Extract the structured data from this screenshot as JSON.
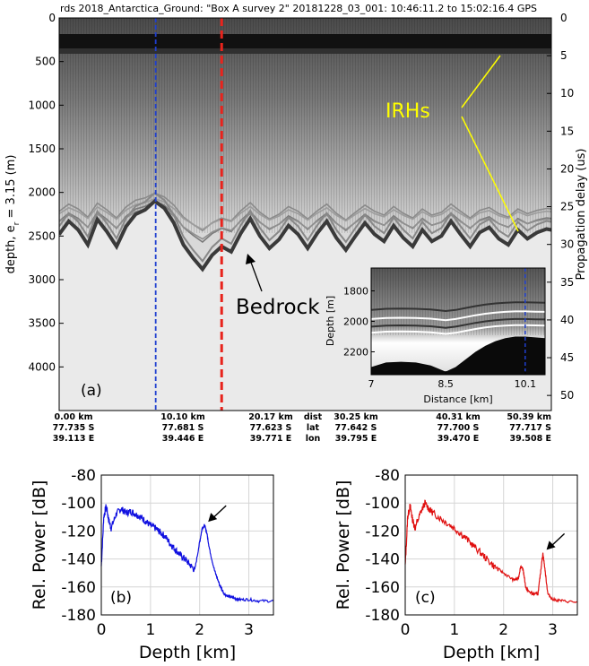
{
  "figure_title": "rds 2018_Antarctica_Ground: \"Box A survey 2\"  20181228_03_001: 10:46:11.2 to 15:02:16.4 GPS",
  "colors": {
    "blue_marker": "#1f3fd0",
    "red_marker": "#e8231c",
    "irh_annotation": "#ffff00",
    "blue_series": "#1010e0",
    "red_series": "#e01010"
  },
  "chart_data": [
    {
      "type": "heatmap",
      "panel_label": "(a)",
      "ylabel": "depth, e",
      "ylabel_sub": "r",
      "ylabel_suffix": " = 3.15 (m)",
      "y2label": "Propagation delay (us)",
      "ylim": [
        0,
        4500
      ],
      "y2lim": [
        0,
        52
      ],
      "yticks": [
        "0",
        "500",
        "1000",
        "1500",
        "2000",
        "2500",
        "3000",
        "3500",
        "4000"
      ],
      "y2ticks": [
        "0",
        "5",
        "10",
        "15",
        "20",
        "25",
        "30",
        "35",
        "40",
        "45",
        "50"
      ],
      "xlim": [
        0,
        51.5
      ],
      "bedrock_profile_km": [
        0,
        1,
        2,
        3,
        4,
        5,
        6,
        7,
        8,
        9,
        10,
        11,
        12,
        13,
        14,
        15,
        16,
        17,
        18,
        19,
        20,
        21,
        22,
        23,
        24,
        25,
        26,
        27,
        28,
        29,
        30,
        31,
        32,
        33,
        34,
        35,
        36,
        37,
        38,
        39,
        40,
        41,
        42,
        43,
        44,
        45,
        46,
        47,
        48,
        49,
        50,
        51,
        51.5
      ],
      "bedrock_profile_depth_m": [
        2480,
        2330,
        2430,
        2600,
        2310,
        2450,
        2620,
        2390,
        2250,
        2200,
        2100,
        2180,
        2350,
        2600,
        2750,
        2880,
        2720,
        2620,
        2680,
        2470,
        2300,
        2500,
        2640,
        2540,
        2380,
        2480,
        2640,
        2470,
        2330,
        2520,
        2660,
        2500,
        2350,
        2480,
        2560,
        2380,
        2520,
        2620,
        2430,
        2560,
        2500,
        2330,
        2480,
        2620,
        2460,
        2400,
        2530,
        2600,
        2430,
        2530,
        2460,
        2420,
        2430
      ],
      "blue_marker_km": 10.1,
      "red_marker_km": 17.0,
      "annotations": [
        {
          "text": "IRHs",
          "target": "internal-layers"
        },
        {
          "text": "Bedrock",
          "target": "bed-reflection"
        }
      ],
      "distance_columns": [
        {
          "dist": "0.00 km",
          "lat": "77.735 S",
          "lon": "39.113 E"
        },
        {
          "dist": "10.10 km",
          "lat": "77.681 S",
          "lon": "39.446 E"
        },
        {
          "dist": "20.17 km",
          "lat": "77.623 S",
          "lon": "39.771 E"
        },
        {
          "dist": "30.25 km",
          "lat": "77.642 S",
          "lon": "39.795 E"
        },
        {
          "dist": "40.31 km",
          "lat": "77.700 S",
          "lon": "39.470 E"
        },
        {
          "dist": "50.39 km",
          "lat": "77.717 S",
          "lon": "39.508 E"
        }
      ],
      "row_labels": [
        "dist",
        "lat",
        "lon"
      ]
    },
    {
      "type": "heatmap",
      "inset": true,
      "ylabel": "Depth [m]",
      "xlabel": "Distance [km]",
      "xlim": [
        7,
        10.5
      ],
      "ylim": [
        1650,
        2350
      ],
      "xticks": [
        "7",
        "8.5",
        "10.1"
      ],
      "yticks": [
        "1800",
        "2000",
        "2200"
      ],
      "bed_km": [
        7.0,
        7.3,
        7.6,
        7.9,
        8.2,
        8.5,
        8.7,
        8.9,
        9.1,
        9.3,
        9.5,
        9.7,
        9.9,
        10.1,
        10.3,
        10.5
      ],
      "bed_depth_m": [
        2300,
        2270,
        2265,
        2270,
        2290,
        2330,
        2300,
        2250,
        2200,
        2160,
        2130,
        2110,
        2100,
        2100,
        2105,
        2110
      ]
    },
    {
      "type": "line",
      "panel_label": "(b)",
      "xlabel": "Depth [km]",
      "ylabel": "Rel. Power [dB]",
      "xlim": [
        0,
        3.5
      ],
      "ylim": [
        -180,
        -80
      ],
      "xticks": [
        "0",
        "1",
        "2",
        "3"
      ],
      "yticks": [
        "-80",
        "-100",
        "-120",
        "-140",
        "-160",
        "-180"
      ],
      "series": [
        {
          "color": "#1010e0",
          "x": [
            0.0,
            0.05,
            0.1,
            0.15,
            0.2,
            0.3,
            0.4,
            0.5,
            0.6,
            0.7,
            0.8,
            0.9,
            1.0,
            1.1,
            1.2,
            1.3,
            1.4,
            1.5,
            1.6,
            1.7,
            1.8,
            1.9,
            2.0,
            2.05,
            2.1,
            2.15,
            2.2,
            2.3,
            2.4,
            2.5,
            2.6,
            2.7,
            2.8,
            3.0,
            3.2,
            3.5
          ],
          "y": [
            -145,
            -110,
            -102,
            -112,
            -118,
            -108,
            -104,
            -107,
            -106,
            -108,
            -110,
            -113,
            -116,
            -118,
            -121,
            -124,
            -129,
            -133,
            -137,
            -140,
            -144,
            -148,
            -128,
            -118,
            -116,
            -122,
            -133,
            -148,
            -158,
            -165,
            -167,
            -168,
            -169,
            -169,
            -170,
            -170
          ]
        }
      ],
      "arrow_at": {
        "x": 2.1,
        "y": -116
      }
    },
    {
      "type": "line",
      "panel_label": "(c)",
      "xlabel": "Depth [km]",
      "ylabel": "Rel. Power [dB]",
      "xlim": [
        0,
        3.5
      ],
      "ylim": [
        -180,
        -80
      ],
      "xticks": [
        "0",
        "1",
        "2",
        "3"
      ],
      "yticks": [
        "-80",
        "-100",
        "-120",
        "-140",
        "-160",
        "-180"
      ],
      "series": [
        {
          "color": "#e01010",
          "x": [
            0.0,
            0.05,
            0.1,
            0.15,
            0.2,
            0.3,
            0.4,
            0.5,
            0.6,
            0.8,
            1.0,
            1.2,
            1.4,
            1.6,
            1.8,
            2.0,
            2.2,
            2.3,
            2.35,
            2.4,
            2.45,
            2.5,
            2.6,
            2.7,
            2.75,
            2.8,
            2.85,
            2.9,
            3.0,
            3.2,
            3.5
          ],
          "y": [
            -145,
            -110,
            -102,
            -112,
            -118,
            -108,
            -100,
            -105,
            -108,
            -113,
            -118,
            -124,
            -131,
            -138,
            -145,
            -150,
            -155,
            -154,
            -145,
            -148,
            -160,
            -163,
            -165,
            -165,
            -150,
            -136,
            -150,
            -165,
            -169,
            -170,
            -171
          ]
        }
      ],
      "arrow_at": {
        "x": 2.8,
        "y": -136
      }
    }
  ]
}
